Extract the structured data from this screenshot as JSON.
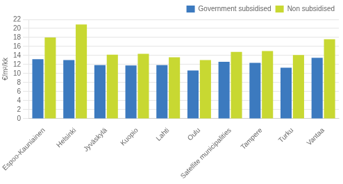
{
  "chart_data": {
    "type": "bar",
    "ylabel": "€/m²/kk",
    "categories": [
      "Espoo-Kauniainen",
      "Helsinki",
      "Jyväskylä",
      "Kuopio",
      "Lahti",
      "Oulu",
      "Satellite municipalities",
      "Tampere",
      "Turku",
      "Vantaa"
    ],
    "series": [
      {
        "name": "Government subsidised",
        "color": "#3c7abf",
        "values": [
          13.2,
          13.0,
          11.9,
          11.8,
          11.9,
          10.7,
          12.6,
          12.4,
          11.3,
          13.5
        ]
      },
      {
        "name": "Non subsidised",
        "color": "#c8d832",
        "values": [
          18.0,
          20.9,
          14.2,
          14.4,
          13.6,
          13.0,
          14.8,
          15.0,
          14.1,
          17.6
        ]
      }
    ],
    "ylim": [
      0,
      22
    ],
    "yticks": [
      0,
      2,
      4,
      6,
      8,
      10,
      12,
      14,
      16,
      18,
      20,
      22
    ],
    "grid": true,
    "legend": "upper right"
  }
}
